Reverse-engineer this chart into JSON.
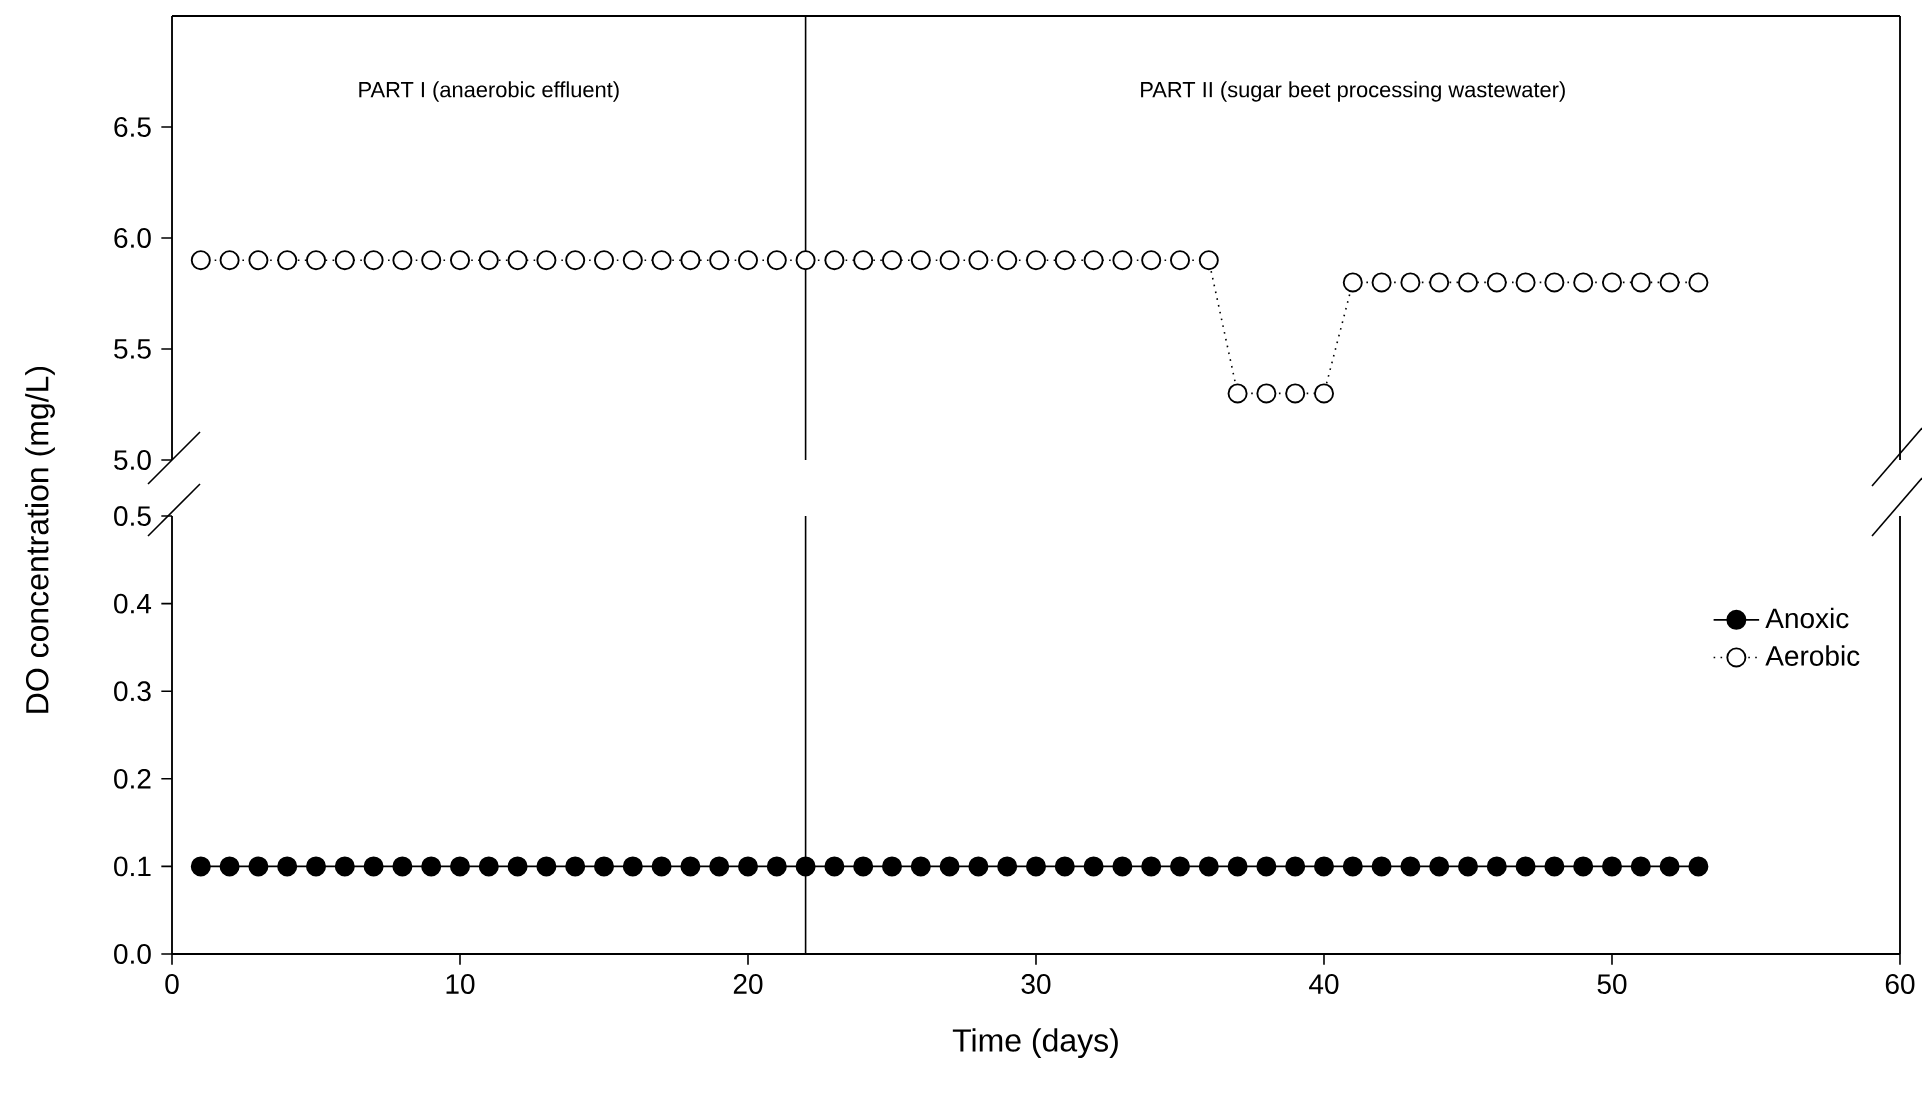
{
  "chart_data": [
    {
      "type": "line",
      "x": [
        1,
        2,
        3,
        4,
        5,
        6,
        7,
        8,
        9,
        10,
        11,
        12,
        13,
        14,
        15,
        16,
        17,
        18,
        19,
        20,
        21,
        22,
        23,
        24,
        25,
        26,
        27,
        28,
        29,
        30,
        31,
        32,
        33,
        34,
        35,
        36,
        37,
        38,
        39,
        40,
        41,
        42,
        43,
        44,
        45,
        46,
        47,
        48,
        49,
        50,
        51,
        52,
        53
      ],
      "series": [
        {
          "color": "#000000",
          "values": [
            5.9,
            5.9,
            5.9,
            5.9,
            5.9,
            5.9,
            5.9,
            5.9,
            5.9,
            5.9,
            5.9,
            5.9,
            5.9,
            5.9,
            5.9,
            5.9,
            5.9,
            5.9,
            5.9,
            5.9,
            5.9,
            5.9,
            5.9,
            5.9,
            5.9,
            5.9,
            5.9,
            5.9,
            5.9,
            5.9,
            5.9,
            5.9,
            5.9,
            5.9,
            5.9,
            5.9,
            5.3,
            5.3,
            5.3,
            5.3,
            5.8,
            5.8,
            5.8,
            5.8,
            5.8,
            5.8,
            5.8,
            5.8,
            5.8,
            5.8,
            5.8,
            5.8,
            5.8
          ]
        }
      ],
      "xlim": [
        0,
        60
      ],
      "ylim": [
        5,
        7
      ],
      "yticks": [
        {
          "value": 5,
          "label": "5.0"
        },
        {
          "value": 5.5,
          "label": "5.5"
        },
        {
          "value": 6,
          "label": "6.0"
        },
        {
          "value": 6.5,
          "label": "6.5"
        }
      ],
      "tick_labels": "y",
      "marker": "circle",
      "line_style": "dotted",
      "ref_lines": [
        {
          "axis": "x",
          "value": 22
        }
      ],
      "annotations": [
        "PART I (anaerobic effluent)",
        "PART II (sugar beet processing wastewater)"
      ]
    },
    {
      "type": "line",
      "x": [
        1,
        2,
        3,
        4,
        5,
        6,
        7,
        8,
        9,
        10,
        11,
        12,
        13,
        14,
        15,
        16,
        17,
        18,
        19,
        20,
        21,
        22,
        23,
        24,
        25,
        26,
        27,
        28,
        29,
        30,
        31,
        32,
        33,
        34,
        35,
        36,
        37,
        38,
        39,
        40,
        41,
        42,
        43,
        44,
        45,
        46,
        47,
        48,
        49,
        50,
        51,
        52,
        53
      ],
      "series": [
        {
          "name": "Anoxic",
          "color": "#000000",
          "values": [
            0.1,
            0.1,
            0.1,
            0.1,
            0.1,
            0.1,
            0.1,
            0.1,
            0.1,
            0.1,
            0.1,
            0.1,
            0.1,
            0.1,
            0.1,
            0.1,
            0.1,
            0.1,
            0.1,
            0.1,
            0.1,
            0.1,
            0.1,
            0.1,
            0.1,
            0.1,
            0.1,
            0.1,
            0.1,
            0.1,
            0.1,
            0.1,
            0.1,
            0.1,
            0.1,
            0.1,
            0.1,
            0.1,
            0.1,
            0.1,
            0.1,
            0.1,
            0.1,
            0.1,
            0.1,
            0.1,
            0.1,
            0.1,
            0.1,
            0.1,
            0.1,
            0.1,
            0.1
          ]
        },
        {
          "name": "Aerobic",
          "color": "#000000",
          "line_style": "dotted",
          "values": [
            null,
            null,
            null,
            null,
            null,
            null,
            null,
            null,
            null,
            null,
            null,
            null,
            null,
            null,
            null,
            null,
            null,
            null,
            null,
            null,
            null,
            null,
            null,
            null,
            null,
            null,
            null,
            null,
            null,
            null,
            null,
            null,
            null,
            null,
            null,
            null,
            null,
            null,
            null,
            null,
            null,
            null,
            null,
            null,
            null,
            null,
            null,
            null,
            null,
            null,
            null,
            null,
            null
          ]
        }
      ],
      "xlim": [
        0,
        60
      ],
      "ylim": [
        0,
        0.5
      ],
      "xticks": [
        0,
        10,
        20,
        30,
        40,
        50,
        60
      ],
      "yticks": [
        {
          "value": 0,
          "label": "0.0"
        },
        {
          "value": 0.1,
          "label": "0.1"
        },
        {
          "value": 0.2,
          "label": "0.2"
        },
        {
          "value": 0.3,
          "label": "0.3"
        },
        {
          "value": 0.4,
          "label": "0.4"
        },
        {
          "value": 0.5,
          "label": "0.5"
        }
      ],
      "xlabel": "Time (days)",
      "ylabel": "DO concentration (mg/L)",
      "legend": "right",
      "marker": "circle",
      "line_style": "solid",
      "ref_lines": [
        {
          "axis": "x",
          "value": 22
        }
      ]
    }
  ]
}
